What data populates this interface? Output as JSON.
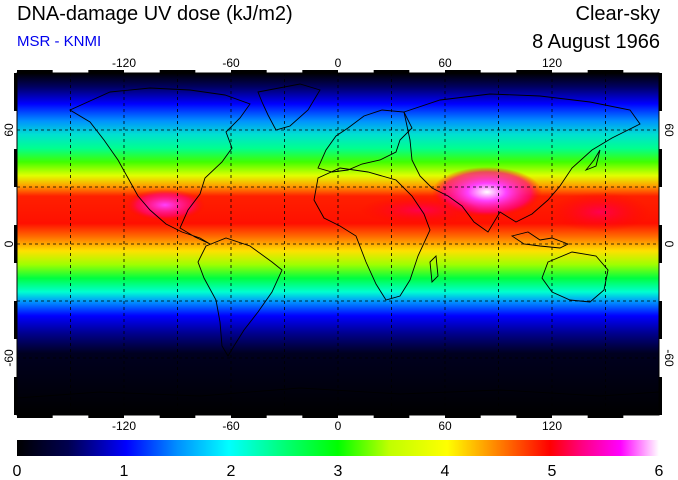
{
  "header": {
    "title": "DNA-damage UV dose (kJ/m2)",
    "source": "MSR - KNMI",
    "sky_condition": "Clear-sky",
    "date": "8 August 1966"
  },
  "map": {
    "projection": "equirectangular",
    "lon_range": [
      -180,
      180
    ],
    "lat_range": [
      -90,
      90
    ],
    "grid_spacing_deg": 30,
    "grid_style": "dashed",
    "lon_tick_labels": [
      "-120",
      "-60",
      "0",
      "60",
      "120"
    ],
    "lat_tick_labels": [
      "-60",
      "0",
      "60"
    ]
  },
  "colorbar": {
    "labels": [
      "0",
      "1",
      "2",
      "3",
      "4",
      "5",
      "6"
    ],
    "range": [
      0,
      6
    ],
    "colors": [
      "#000000",
      "#000080",
      "#0000ff",
      "#0088ff",
      "#00ffff",
      "#00ff80",
      "#00ff00",
      "#aaff00",
      "#ffff00",
      "#ff8000",
      "#ff0000",
      "#ff0080",
      "#ff00ff",
      "#ffffff"
    ]
  }
}
